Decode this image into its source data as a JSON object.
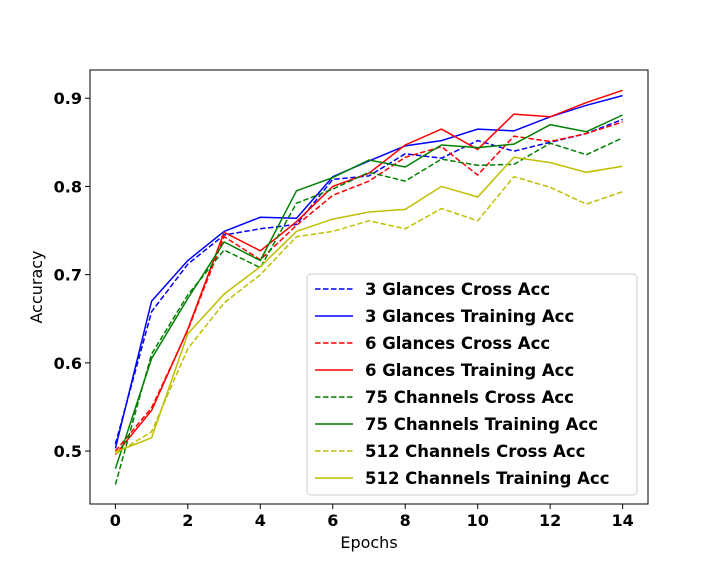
{
  "chart_data": {
    "type": "line",
    "xlabel": "Epochs",
    "ylabel": "Accuracy",
    "xlim": [
      -0.7,
      14.7
    ],
    "ylim": [
      0.44,
      0.932
    ],
    "xticks": [
      0,
      2,
      4,
      6,
      8,
      10,
      12,
      14
    ],
    "xtick_labels": [
      "0",
      "2",
      "4",
      "6",
      "8",
      "10",
      "12",
      "14"
    ],
    "yticks": [
      0.5,
      0.6,
      0.7,
      0.8,
      0.9
    ],
    "ytick_labels": [
      "0.5",
      "0.6",
      "0.7",
      "0.8",
      "0.9"
    ],
    "grid": false,
    "legend_position": "lower-right",
    "x": [
      0,
      1,
      2,
      3,
      4,
      5,
      6,
      7,
      8,
      9,
      10,
      11,
      12,
      13,
      14
    ],
    "series": [
      {
        "name": "3 Glances Cross Acc",
        "color": "#0000ff",
        "dashed": true,
        "values": [
          0.508,
          0.658,
          0.712,
          0.745,
          0.752,
          0.757,
          0.808,
          0.812,
          0.837,
          0.832,
          0.852,
          0.84,
          0.85,
          0.86,
          0.876
        ]
      },
      {
        "name": "3 Glances Training Acc",
        "color": "#0000ff",
        "dashed": false,
        "values": [
          0.503,
          0.67,
          0.716,
          0.749,
          0.765,
          0.764,
          0.811,
          0.829,
          0.846,
          0.852,
          0.865,
          0.863,
          0.879,
          0.892,
          0.903
        ]
      },
      {
        "name": "6 Glances Cross Acc",
        "color": "#ff0000",
        "dashed": true,
        "values": [
          0.5,
          0.549,
          0.637,
          0.743,
          0.717,
          0.756,
          0.79,
          0.806,
          0.833,
          0.845,
          0.813,
          0.857,
          0.851,
          0.86,
          0.873
        ]
      },
      {
        "name": "6 Glances Training Acc",
        "color": "#ff0000",
        "dashed": false,
        "values": [
          0.496,
          0.546,
          0.638,
          0.748,
          0.727,
          0.76,
          0.8,
          0.815,
          0.847,
          0.865,
          0.842,
          0.882,
          0.879,
          0.895,
          0.909
        ]
      },
      {
        "name": "75 Channels Cross Acc",
        "color": "#008000",
        "dashed": true,
        "values": [
          0.462,
          0.61,
          0.677,
          0.728,
          0.708,
          0.781,
          0.797,
          0.816,
          0.806,
          0.831,
          0.824,
          0.825,
          0.849,
          0.836,
          0.855
        ]
      },
      {
        "name": "75 Channels Training Acc",
        "color": "#008000",
        "dashed": false,
        "values": [
          0.48,
          0.605,
          0.673,
          0.737,
          0.716,
          0.795,
          0.81,
          0.83,
          0.822,
          0.847,
          0.844,
          0.848,
          0.87,
          0.862,
          0.881
        ]
      },
      {
        "name": "512 Channels Cross Acc",
        "color": "#bfbf00",
        "dashed": true,
        "values": [
          0.497,
          0.522,
          0.616,
          0.668,
          0.7,
          0.743,
          0.749,
          0.761,
          0.752,
          0.775,
          0.761,
          0.811,
          0.799,
          0.78,
          0.794
        ]
      },
      {
        "name": "512 Channels Training Acc",
        "color": "#bfbf00",
        "dashed": false,
        "values": [
          0.499,
          0.515,
          0.633,
          0.678,
          0.709,
          0.749,
          0.763,
          0.771,
          0.774,
          0.8,
          0.788,
          0.833,
          0.827,
          0.816,
          0.823
        ]
      }
    ]
  }
}
